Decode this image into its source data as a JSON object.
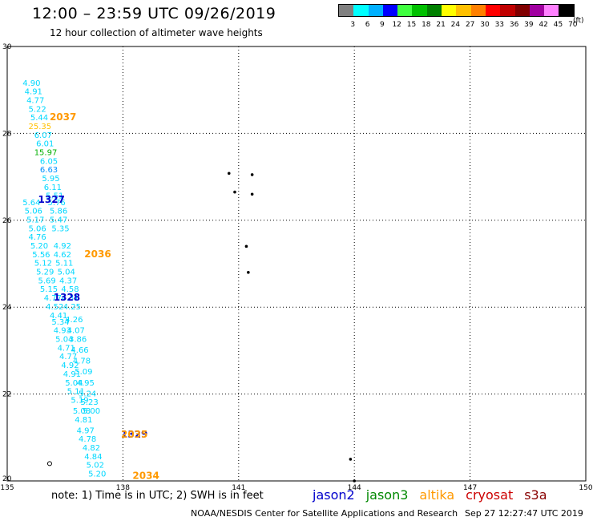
{
  "header": {
    "title": "12:00 – 23:59 UTC 09/26/2019",
    "subtitle": "12 hour collection of altimeter wave heights"
  },
  "colorbar": {
    "unit": "(ft)",
    "labels": [
      "3",
      "6",
      "9",
      "12",
      "15",
      "18",
      "21",
      "24",
      "27",
      "30",
      "33",
      "36",
      "39",
      "42",
      "45",
      "70"
    ],
    "colors": [
      "#808080",
      "#00ffff",
      "#00b0ff",
      "#0000ff",
      "#40ff40",
      "#00c000",
      "#008000",
      "#ffff00",
      "#ffc000",
      "#ff8000",
      "#ff0000",
      "#c00000",
      "#800000",
      "#a000a0",
      "#ff80ff",
      "#000000"
    ]
  },
  "footer": {
    "note": "note: 1) Time is in UTC; 2) SWH is in feet",
    "satellites": [
      {
        "name": "jason2",
        "color": "#0000cc"
      },
      {
        "name": "jason3",
        "color": "#008800"
      },
      {
        "name": "altika",
        "color": "#ff9900"
      },
      {
        "name": "cryosat",
        "color": "#cc0000"
      },
      {
        "name": "s3a",
        "color": "#880000"
      }
    ],
    "credit": "NOAA/NESDIS Center for Satellite Applications and Research",
    "timestamp": "Sep 27 12:27:47 UTC 2019"
  },
  "chart_data": {
    "type": "scatter",
    "xlim": [
      135,
      150
    ],
    "ylim": [
      20,
      30
    ],
    "xticks": [
      "135",
      "138",
      "141",
      "144",
      "147",
      "150"
    ],
    "yticks": [
      "20",
      "22",
      "24",
      "26",
      "28",
      "30"
    ],
    "grid": true,
    "value_labels": [
      {
        "x": 135.4,
        "y": 29.1,
        "text": "4.90",
        "color": "#00d8ff"
      },
      {
        "x": 135.45,
        "y": 28.9,
        "text": "4.91",
        "color": "#00d8ff"
      },
      {
        "x": 135.5,
        "y": 28.7,
        "text": "4.77",
        "color": "#00d8ff"
      },
      {
        "x": 135.55,
        "y": 28.5,
        "text": "5.22",
        "color": "#00d8ff"
      },
      {
        "x": 135.6,
        "y": 28.3,
        "text": "5.44",
        "color": "#00d8ff"
      },
      {
        "x": 135.55,
        "y": 28.1,
        "text": "25.35",
        "color": "#ffc000"
      },
      {
        "x": 135.7,
        "y": 27.9,
        "text": "6.07",
        "color": "#00d8ff"
      },
      {
        "x": 135.75,
        "y": 27.7,
        "text": "6.01",
        "color": "#00d8ff"
      },
      {
        "x": 135.7,
        "y": 27.5,
        "text": "15.97",
        "color": "#00b000"
      },
      {
        "x": 135.85,
        "y": 27.3,
        "text": "6.05",
        "color": "#00d8ff"
      },
      {
        "x": 135.85,
        "y": 27.1,
        "text": "6.63",
        "color": "#0090ff"
      },
      {
        "x": 135.9,
        "y": 26.9,
        "text": "5.95",
        "color": "#00d8ff"
      },
      {
        "x": 135.95,
        "y": 26.7,
        "text": "6.11",
        "color": "#00d8ff"
      },
      {
        "x": 136.0,
        "y": 26.5,
        "text": "5.51",
        "color": "#00d8ff"
      },
      {
        "x": 135.4,
        "y": 26.35,
        "text": "5.64",
        "color": "#00d8ff"
      },
      {
        "x": 136.05,
        "y": 26.35,
        "text": "5.76",
        "color": "#00d8ff"
      },
      {
        "x": 135.45,
        "y": 26.15,
        "text": "5.06",
        "color": "#00d8ff"
      },
      {
        "x": 136.1,
        "y": 26.15,
        "text": "5.86",
        "color": "#00d8ff"
      },
      {
        "x": 135.5,
        "y": 25.95,
        "text": "5.17",
        "color": "#00d8ff"
      },
      {
        "x": 136.1,
        "y": 25.95,
        "text": "5.47",
        "color": "#00d8ff"
      },
      {
        "x": 135.55,
        "y": 25.75,
        "text": "5.06",
        "color": "#00d8ff"
      },
      {
        "x": 136.15,
        "y": 25.75,
        "text": "5.35",
        "color": "#00d8ff"
      },
      {
        "x": 135.55,
        "y": 25.55,
        "text": "4.76",
        "color": "#00d8ff"
      },
      {
        "x": 135.6,
        "y": 25.35,
        "text": "5.20",
        "color": "#00d8ff"
      },
      {
        "x": 136.2,
        "y": 25.35,
        "text": "4.92",
        "color": "#00d8ff"
      },
      {
        "x": 135.65,
        "y": 25.15,
        "text": "5.56",
        "color": "#00d8ff"
      },
      {
        "x": 136.2,
        "y": 25.15,
        "text": "4.62",
        "color": "#00d8ff"
      },
      {
        "x": 135.7,
        "y": 24.95,
        "text": "5.12",
        "color": "#00d8ff"
      },
      {
        "x": 136.25,
        "y": 24.95,
        "text": "5.11",
        "color": "#00d8ff"
      },
      {
        "x": 135.75,
        "y": 24.75,
        "text": "5.29",
        "color": "#00d8ff"
      },
      {
        "x": 136.3,
        "y": 24.75,
        "text": "5.04",
        "color": "#00d8ff"
      },
      {
        "x": 135.8,
        "y": 24.55,
        "text": "5.69",
        "color": "#00d8ff"
      },
      {
        "x": 136.35,
        "y": 24.55,
        "text": "4.37",
        "color": "#00d8ff"
      },
      {
        "x": 135.85,
        "y": 24.35,
        "text": "5.15",
        "color": "#00d8ff"
      },
      {
        "x": 136.4,
        "y": 24.35,
        "text": "4.58",
        "color": "#00d8ff"
      },
      {
        "x": 135.95,
        "y": 24.15,
        "text": "4.77",
        "color": "#00d8ff"
      },
      {
        "x": 136.4,
        "y": 24.15,
        "text": "4.31",
        "color": "#00d8ff"
      },
      {
        "x": 136.0,
        "y": 23.95,
        "text": "4.52",
        "color": "#00d8ff"
      },
      {
        "x": 136.45,
        "y": 23.95,
        "text": "4.25",
        "color": "#00d8ff"
      },
      {
        "x": 136.1,
        "y": 23.75,
        "text": "4.41",
        "color": "#00d8ff"
      },
      {
        "x": 136.15,
        "y": 23.6,
        "text": "5.34",
        "color": "#00d8ff"
      },
      {
        "x": 136.5,
        "y": 23.65,
        "text": "4.26",
        "color": "#00d8ff"
      },
      {
        "x": 136.2,
        "y": 23.4,
        "text": "4.93",
        "color": "#00d8ff"
      },
      {
        "x": 136.55,
        "y": 23.4,
        "text": "4.07",
        "color": "#00d8ff"
      },
      {
        "x": 136.25,
        "y": 23.2,
        "text": "5.04",
        "color": "#00d8ff"
      },
      {
        "x": 136.6,
        "y": 23.2,
        "text": "3.86",
        "color": "#00d8ff"
      },
      {
        "x": 136.3,
        "y": 23.0,
        "text": "4.71",
        "color": "#00d8ff"
      },
      {
        "x": 136.65,
        "y": 22.95,
        "text": "4.66",
        "color": "#00d8ff"
      },
      {
        "x": 136.35,
        "y": 22.8,
        "text": "4.77",
        "color": "#00d8ff"
      },
      {
        "x": 136.4,
        "y": 22.6,
        "text": "4.92",
        "color": "#00d8ff"
      },
      {
        "x": 136.7,
        "y": 22.7,
        "text": "4.78",
        "color": "#00d8ff"
      },
      {
        "x": 136.45,
        "y": 22.4,
        "text": "4.91",
        "color": "#00d8ff"
      },
      {
        "x": 136.75,
        "y": 22.45,
        "text": "5.09",
        "color": "#00d8ff"
      },
      {
        "x": 136.5,
        "y": 22.2,
        "text": "5.04",
        "color": "#00d8ff"
      },
      {
        "x": 136.8,
        "y": 22.2,
        "text": "4.95",
        "color": "#00d8ff"
      },
      {
        "x": 136.55,
        "y": 22.0,
        "text": "5.11",
        "color": "#00d8ff"
      },
      {
        "x": 136.85,
        "y": 21.95,
        "text": "5.24",
        "color": "#00d8ff"
      },
      {
        "x": 136.65,
        "y": 21.8,
        "text": "5.19",
        "color": "#00d8ff"
      },
      {
        "x": 136.9,
        "y": 21.75,
        "text": "5.23",
        "color": "#00d8ff"
      },
      {
        "x": 136.7,
        "y": 21.55,
        "text": "5.08",
        "color": "#00d8ff"
      },
      {
        "x": 136.95,
        "y": 21.55,
        "text": "5.00",
        "color": "#00d8ff"
      },
      {
        "x": 136.75,
        "y": 21.35,
        "text": "4.81",
        "color": "#00d8ff"
      },
      {
        "x": 136.8,
        "y": 21.1,
        "text": "4.97",
        "color": "#00d8ff"
      },
      {
        "x": 136.85,
        "y": 20.9,
        "text": "4.78",
        "color": "#00d8ff"
      },
      {
        "x": 136.95,
        "y": 20.7,
        "text": "4.82",
        "color": "#00d8ff"
      },
      {
        "x": 137.0,
        "y": 20.5,
        "text": "4.84",
        "color": "#00d8ff"
      },
      {
        "x": 137.05,
        "y": 20.3,
        "text": "5.02",
        "color": "#00d8ff"
      },
      {
        "x": 137.1,
        "y": 20.1,
        "text": "5.20",
        "color": "#00d8ff"
      }
    ],
    "time_labels": [
      {
        "x": 136.1,
        "y": 28.3,
        "text": "2037",
        "color": "#ff9900"
      },
      {
        "x": 135.8,
        "y": 26.4,
        "text": "1327",
        "color": "#0000cc"
      },
      {
        "x": 137.0,
        "y": 25.15,
        "text": "2036",
        "color": "#ff9900"
      },
      {
        "x": 136.2,
        "y": 24.15,
        "text": "1328",
        "color": "#0000cc"
      },
      {
        "x": 137.95,
        "y": 21.0,
        "text": "1329",
        "color": "#0000cc"
      },
      {
        "x": 137.95,
        "y": 21.0,
        "text": "2035",
        "color": "#ff9900"
      },
      {
        "x": 138.25,
        "y": 20.05,
        "text": "2034",
        "color": "#ff9900"
      }
    ],
    "land": [
      {
        "lon": 140.75,
        "lat": 27.08
      },
      {
        "lon": 140.9,
        "lat": 26.65
      },
      {
        "lon": 141.35,
        "lat": 27.05
      },
      {
        "lon": 141.35,
        "lat": 26.6
      },
      {
        "lon": 141.2,
        "lat": 25.4
      },
      {
        "lon": 141.25,
        "lat": 24.8
      },
      {
        "lon": 143.9,
        "lat": 20.5
      },
      {
        "lon": 144.0,
        "lat": 20.0
      },
      {
        "lon": 136.1,
        "lat": 20.4
      }
    ]
  }
}
